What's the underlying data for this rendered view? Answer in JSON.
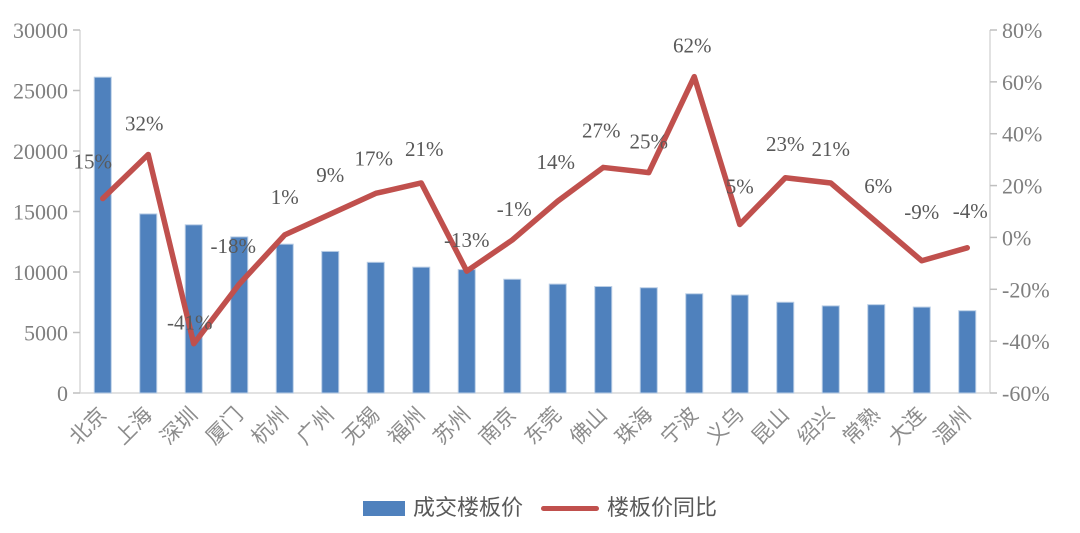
{
  "chart_data": {
    "type": "bar+line",
    "categories": [
      "北京",
      "上海",
      "深圳",
      "厦门",
      "杭州",
      "广州",
      "无锡",
      "福州",
      "苏州",
      "南京",
      "东莞",
      "佛山",
      "珠海",
      "宁波",
      "义乌",
      "昆山",
      "绍兴",
      "常熟",
      "大连",
      "温州"
    ],
    "series": [
      {
        "name": "成交楼板价",
        "type": "bar",
        "axis": "left",
        "values": [
          26100,
          14800,
          13900,
          12900,
          12300,
          11700,
          10800,
          10400,
          10200,
          9400,
          9000,
          8800,
          8700,
          8200,
          8100,
          7500,
          7200,
          7300,
          7100,
          6800
        ]
      },
      {
        "name": "楼板价同比",
        "type": "line",
        "axis": "right",
        "unit": "%",
        "values": [
          15,
          32,
          -41,
          -18,
          1,
          9,
          17,
          21,
          -13,
          -1,
          14,
          27,
          25,
          62,
          5,
          23,
          21,
          6,
          -9,
          -4
        ],
        "point_labels": [
          "15%",
          "32%",
          "-41%",
          "-18%",
          "1%",
          "9%",
          "17%",
          "21%",
          "-13%",
          "-1%",
          "14%",
          "27%",
          "25%",
          "62%",
          "5%",
          "23%",
          "21%",
          "6%",
          "-9%",
          "-4%"
        ]
      }
    ],
    "left_axis": {
      "min": 0,
      "max": 30000,
      "tick_labels": [
        "30000",
        "25000",
        "20000",
        "15000",
        "10000",
        "5000",
        "0"
      ]
    },
    "right_axis": {
      "min": -60,
      "max": 80,
      "tick_labels": [
        "80%",
        "60%",
        "40%",
        "20%",
        "0%",
        "-20%",
        "-40%",
        "-60%"
      ]
    },
    "title": "",
    "xlabel": "",
    "ylabel": "",
    "grid": "off",
    "legend_position": "bottom"
  },
  "legend": {
    "bar_label": "成交楼板价",
    "line_label": "楼板价同比"
  },
  "colors": {
    "bar": "#4f81bd",
    "bar_border": "#b9cde5",
    "line": "#c0504d",
    "axis_text": "#7f7f7f",
    "category_text": "#8c8c8c",
    "data_label_text": "#595959",
    "legend_text": "#595959",
    "axis_line": "#d9d9d9",
    "tick": "#bfbfbf",
    "background": "#ffffff"
  }
}
